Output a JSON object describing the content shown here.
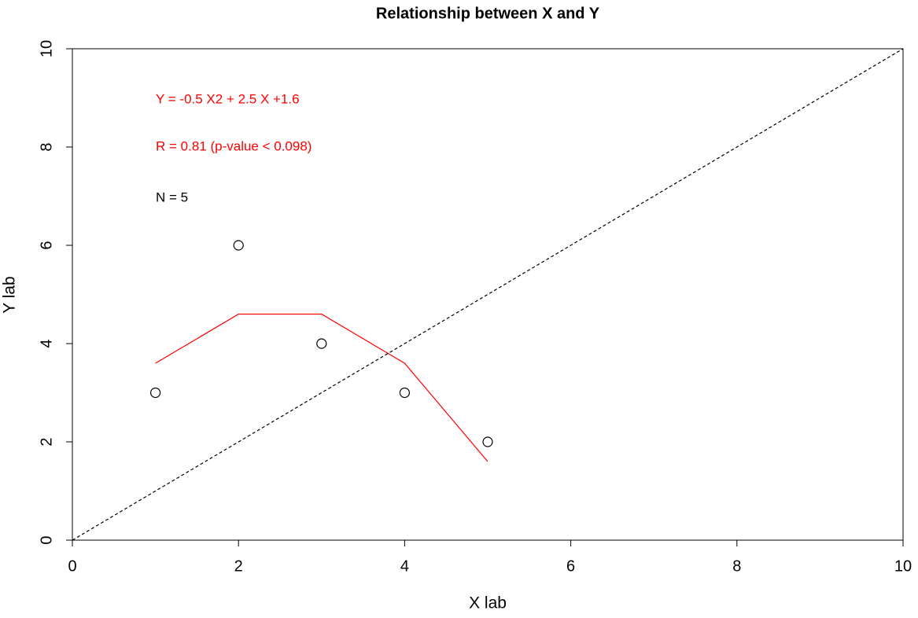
{
  "chart_data": {
    "type": "scatter",
    "title": "Relationship between X and Y",
    "x_label": "X lab",
    "y_label": "Y lab",
    "xlim": [
      0,
      10
    ],
    "ylim": [
      0,
      10
    ],
    "xticks": [
      0,
      2,
      4,
      6,
      8,
      10
    ],
    "yticks": [
      0,
      2,
      4,
      6,
      8,
      10
    ],
    "series": [
      {
        "style": "points",
        "color": "#000000",
        "x": [
          1,
          2,
          3,
          4,
          5
        ],
        "values": [
          3,
          6,
          4,
          3,
          2
        ]
      },
      {
        "style": "line",
        "color": "#ff0000",
        "x": [
          1,
          2,
          3,
          4,
          5
        ],
        "values": [
          3.6,
          4.6,
          4.6,
          3.6,
          1.6
        ]
      },
      {
        "style": "dashed",
        "color": "#000000",
        "x": [
          0,
          10
        ],
        "values": [
          0,
          10
        ]
      }
    ],
    "annotations": [
      {
        "text": "Y = -0.5 X2 + 2.5 X +1.6",
        "color": "#ff0000"
      },
      {
        "text": "R = 0.81 (p-value < 0.098)",
        "color": "#ff0000"
      },
      {
        "text": "N = 5",
        "color": "#000000"
      }
    ]
  }
}
